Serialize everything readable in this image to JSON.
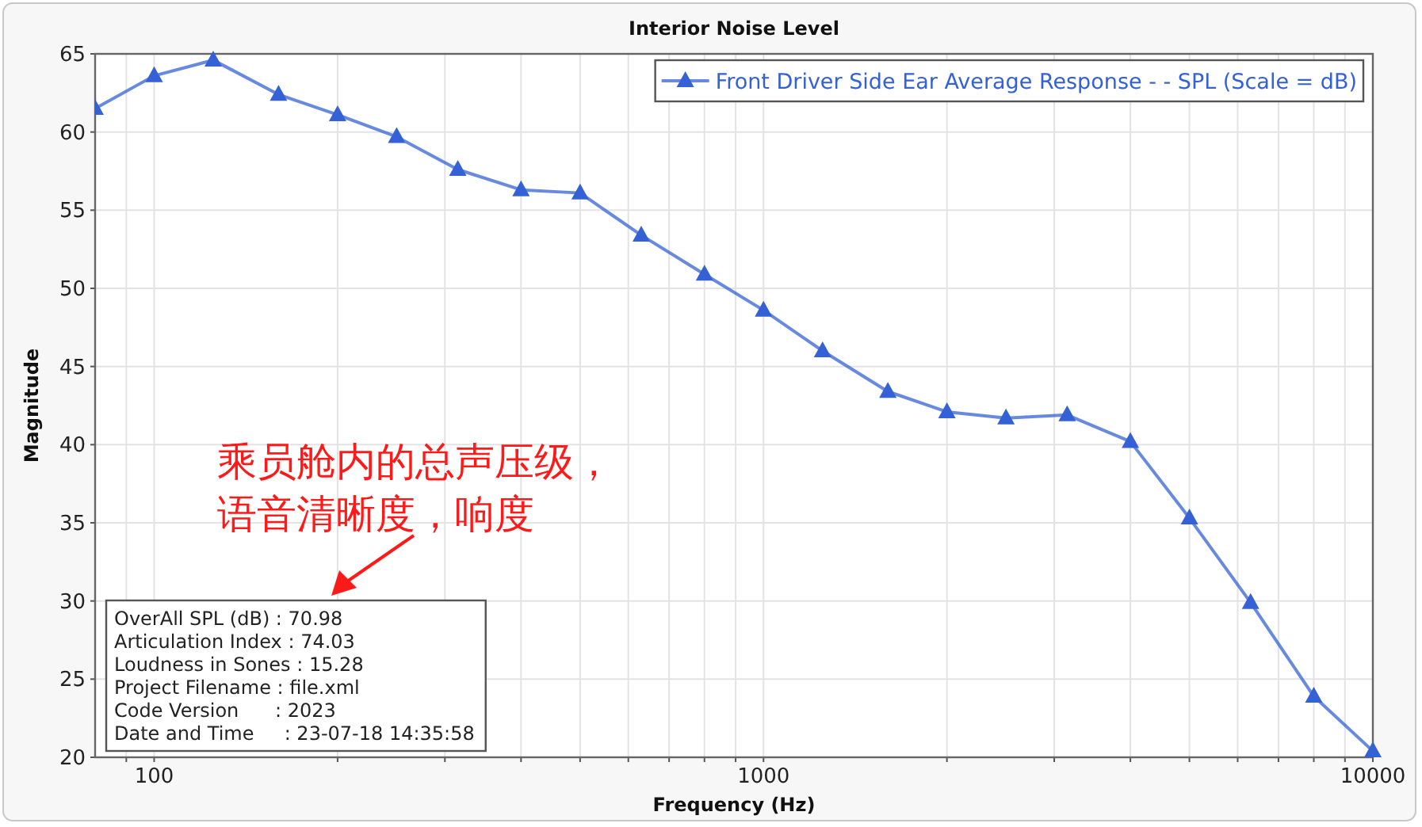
{
  "chart_data": {
    "type": "line",
    "title": "Interior Noise Level",
    "xlabel": "Frequency (Hz)",
    "ylabel": "Magnitude",
    "x": [
      80,
      100,
      125,
      160,
      200,
      250,
      315,
      400,
      500,
      630,
      800,
      1000,
      1250,
      1600,
      2000,
      2500,
      3150,
      4000,
      5000,
      6300,
      8000,
      10000
    ],
    "series": [
      {
        "name": "Front Driver Side Ear Average Response -  - SPL (Scale = dB)",
        "color": "#3461d6",
        "values": [
          61.5,
          63.6,
          64.6,
          62.4,
          61.1,
          59.7,
          57.6,
          56.3,
          56.1,
          53.4,
          50.9,
          48.6,
          46.0,
          43.4,
          42.1,
          41.7,
          41.9,
          40.2,
          35.3,
          29.9,
          23.9,
          20.4
        ]
      }
    ],
    "log": "x",
    "xlim": [
      80,
      10000
    ],
    "xticks": [
      {
        "value": 90,
        "label": null
      },
      100,
      {
        "value": 200,
        "label": null
      },
      {
        "value": 300,
        "label": null
      },
      {
        "value": 400,
        "label": null
      },
      {
        "value": 500,
        "label": null
      },
      {
        "value": 600,
        "label": null
      },
      {
        "value": 700,
        "label": null
      },
      {
        "value": 800,
        "label": null
      },
      {
        "value": 900,
        "label": null
      },
      1000,
      {
        "value": 2000,
        "label": null
      },
      {
        "value": 3000,
        "label": null
      },
      {
        "value": 4000,
        "label": null
      },
      {
        "value": 5000,
        "label": null
      },
      {
        "value": 6000,
        "label": null
      },
      {
        "value": 7000,
        "label": null
      },
      {
        "value": 8000,
        "label": null
      },
      {
        "value": 9000,
        "label": null
      },
      10000
    ],
    "ylim": [
      20,
      65
    ],
    "yticks": [
      20,
      25,
      30,
      35,
      40,
      45,
      50,
      55,
      60,
      65
    ],
    "grid": true,
    "legend": "top right",
    "marker": "triangle",
    "line_style": "solid",
    "annotations": [
      "乘员舱内的总声压级，",
      "语音清晰度，响度",
      "OverAll SPL (dB) : 70.98",
      "Articulation Index : 74.03",
      "Loudness in Sones : 15.28",
      "Project Filename : file.xml",
      "Code Version      : 2023",
      "Date and Time     : 23-07-18 14:35:58"
    ]
  }
}
